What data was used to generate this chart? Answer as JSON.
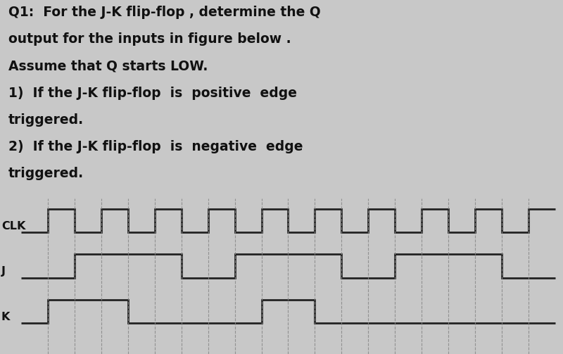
{
  "background_color": "#c8c8c8",
  "text_area_color": "#e8e8e8",
  "wave_area_color": "#d0d0d0",
  "text_color": "#111111",
  "title_lines": [
    "Q1:  For the J-K flip-flop , determine the Q",
    "output for the inputs in figure below .",
    "Assume that Q starts LOW.",
    "1)  If the J-K flip-flop  is  positive  edge",
    "triggered.",
    "2)  If the J-K flip-flop  is  negative  edge",
    "triggered."
  ],
  "signal_labels": [
    "CLK",
    "J",
    "K"
  ],
  "clk_times": [
    0,
    1,
    1,
    2,
    2,
    3,
    3,
    4,
    4,
    5,
    5,
    6,
    6,
    7,
    7,
    8,
    8,
    9,
    9,
    10,
    10,
    11,
    11,
    12,
    12,
    13,
    13,
    14,
    14,
    15,
    15,
    16,
    16,
    17,
    17,
    18,
    18,
    19,
    19,
    20
  ],
  "clk_values": [
    0,
    0,
    1,
    1,
    0,
    0,
    1,
    1,
    0,
    0,
    1,
    1,
    0,
    0,
    1,
    1,
    0,
    0,
    1,
    1,
    0,
    0,
    1,
    1,
    0,
    0,
    1,
    1,
    0,
    0,
    1,
    1,
    0,
    0,
    1,
    1,
    0,
    0,
    1,
    1
  ],
  "j_times": [
    0,
    2,
    2,
    6,
    6,
    8,
    8,
    12,
    12,
    14,
    14,
    18,
    18,
    20
  ],
  "j_values": [
    0,
    0,
    1,
    1,
    0,
    0,
    1,
    1,
    0,
    0,
    1,
    1,
    0,
    0
  ],
  "k_times": [
    0,
    1,
    1,
    4,
    4,
    6,
    6,
    9,
    9,
    11,
    11,
    14,
    14,
    20
  ],
  "k_values": [
    0,
    0,
    1,
    1,
    0,
    0,
    0,
    0,
    1,
    1,
    0,
    0,
    0,
    0
  ],
  "dashed_x_positions": [
    1,
    2,
    3,
    4,
    5,
    6,
    7,
    8,
    9,
    10,
    11,
    12,
    13,
    14,
    15,
    16,
    17,
    18,
    19
  ],
  "fig_width": 8.0,
  "fig_height": 5.03,
  "dpi": 100,
  "text_fontsize": 13.5,
  "label_fontsize": 11.5,
  "line_width": 2.0,
  "dash_color": "#888888",
  "dash_lw": 0.8,
  "signal_line_color": "#222222"
}
